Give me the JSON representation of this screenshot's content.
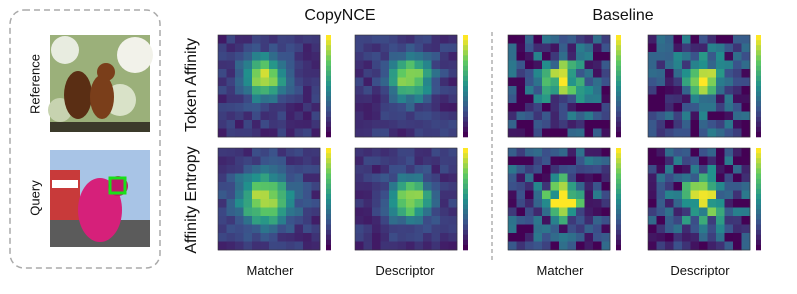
{
  "column_titles": [
    "CopyNCE",
    "Baseline"
  ],
  "inputs": [
    "Reference",
    "Query"
  ],
  "rows": [
    "Token Affinity",
    "Affinity Entropy"
  ],
  "panels": [
    "Matcher",
    "Descriptor",
    "Matcher",
    "Descriptor"
  ]
}
